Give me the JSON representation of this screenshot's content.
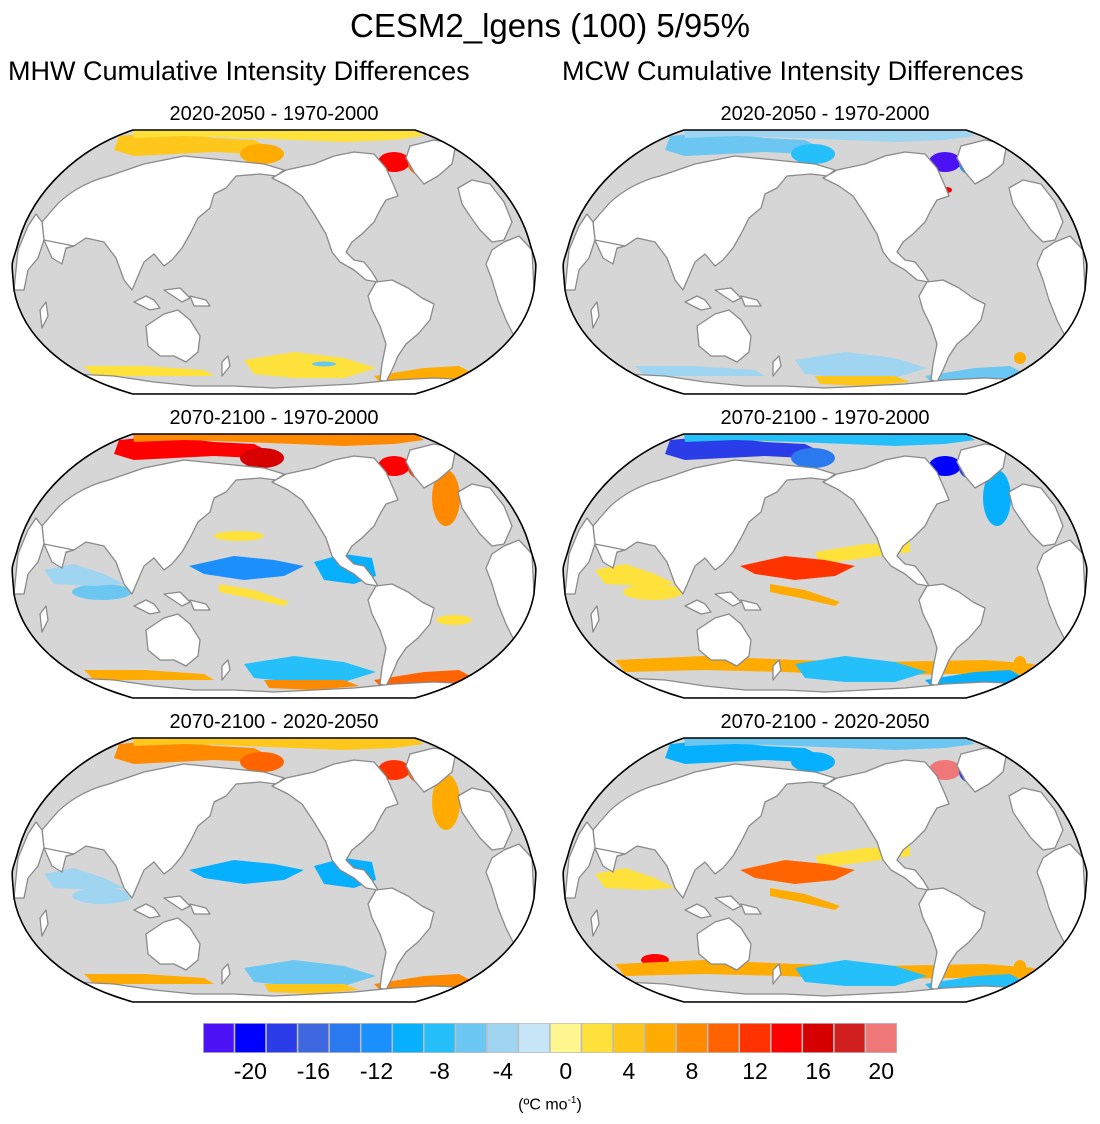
{
  "chart_data": {
    "type": "heatmap",
    "title": "CESM2_lgens (100) 5/95%",
    "projection": "Robinson, centered 180°",
    "columns": [
      "MHW Cumulative Intensity Differences",
      "MCW Cumulative Intensity Differences"
    ],
    "colorbar": {
      "units_prefix": "(ºC mo",
      "units_sup": "-1",
      "units_suffix": ")",
      "tick_labels": [
        "-20",
        "-16",
        "-12",
        "-8",
        "-4",
        "0",
        "4",
        "8",
        "12",
        "16",
        "20"
      ],
      "tick_values": [
        -20,
        -16,
        -12,
        -8,
        -4,
        0,
        4,
        8,
        12,
        16,
        20
      ],
      "levels": [
        -22,
        -20,
        -18,
        -16,
        -14,
        -12,
        -10,
        -8,
        -6,
        -4,
        -2,
        0,
        2,
        4,
        6,
        8,
        10,
        12,
        14,
        16,
        18,
        20,
        22
      ],
      "colors": [
        "#4a12f5",
        "#0000ff",
        "#2a3de8",
        "#3e66de",
        "#2a79ee",
        "#1b8ffc",
        "#07b0fc",
        "#25c0fa",
        "#6cc6f2",
        "#9fd5f0",
        "#c6e6f7",
        "#fff68f",
        "#ffe13b",
        "#ffc61c",
        "#ffab00",
        "#ff8a00",
        "#ff6400",
        "#ff3300",
        "#ff0000",
        "#d70000",
        "#d11f1f",
        "#f07777"
      ]
    },
    "land_color": "#ffffff",
    "nonsignificant_ocean_color": "#d6d6d6",
    "coastline_color": "#8a8a8a",
    "panels": [
      {
        "title": "2020-2050 - 1970-2000",
        "column": 0,
        "row": 0,
        "regions": [
          {
            "region": "arctic-siberian-shelf",
            "value": 4
          },
          {
            "region": "arctic-central",
            "value": 3
          },
          {
            "region": "east-siberian-sea",
            "value": 7
          },
          {
            "region": "hudson-bay",
            "value": 5
          },
          {
            "region": "labrador-sea",
            "value": 15
          },
          {
            "region": "irminger-sea",
            "value": 11
          },
          {
            "region": "southern-ocean-indian",
            "value": 3
          },
          {
            "region": "southern-ocean-pacific",
            "value": 3
          },
          {
            "region": "weddell-sea",
            "value": 6
          },
          {
            "region": "drake-passage",
            "value": -5
          }
        ]
      },
      {
        "title": "2020-2050 - 1970-2000",
        "column": 1,
        "row": 0,
        "regions": [
          {
            "region": "arctic-siberian-shelf",
            "value": -6
          },
          {
            "region": "arctic-central",
            "value": -3
          },
          {
            "region": "east-siberian-sea",
            "value": -8
          },
          {
            "region": "hudson-bay",
            "value": -4
          },
          {
            "region": "labrador-sea",
            "value": -21
          },
          {
            "region": "irminger-sea",
            "value": -12
          },
          {
            "region": "gulf-stream",
            "value": 14
          },
          {
            "region": "southern-ocean-indian",
            "value": -3
          },
          {
            "region": "southern-ocean-pacific",
            "value": -4
          },
          {
            "region": "ross-sea-band",
            "value": 5
          },
          {
            "region": "weddell-sea",
            "value": -6
          },
          {
            "region": "south-atlantic-eddy",
            "value": 6
          }
        ]
      },
      {
        "title": "2070-2100 - 1970-2000",
        "column": 0,
        "row": 1,
        "regions": [
          {
            "region": "arctic-siberian-shelf",
            "value": 15
          },
          {
            "region": "arctic-central",
            "value": 8
          },
          {
            "region": "east-siberian-sea",
            "value": 16
          },
          {
            "region": "hudson-bay",
            "value": 17
          },
          {
            "region": "labrador-sea",
            "value": 15
          },
          {
            "region": "irminger-sea",
            "value": 13
          },
          {
            "region": "north-atlantic-drift",
            "value": 9
          },
          {
            "region": "north-pacific-band",
            "value": 3
          },
          {
            "region": "equatorial-pacific-west",
            "value": -12
          },
          {
            "region": "equatorial-pacific-east",
            "value": -9
          },
          {
            "region": "indian-ocean-south",
            "value": -5
          },
          {
            "region": "indian-ocean-north",
            "value": -3
          },
          {
            "region": "south-pacific-band",
            "value": 3
          },
          {
            "region": "south-atlantic-band",
            "value": 3
          },
          {
            "region": "southern-ocean-pacific",
            "value": -8
          },
          {
            "region": "southern-ocean-indian",
            "value": 7
          },
          {
            "region": "weddell-sea",
            "value": 10
          },
          {
            "region": "ross-sea-band",
            "value": 9
          }
        ]
      },
      {
        "title": "2070-2100 - 1970-2000",
        "column": 1,
        "row": 1,
        "regions": [
          {
            "region": "arctic-siberian-shelf",
            "value": -17
          },
          {
            "region": "arctic-central",
            "value": -7
          },
          {
            "region": "east-siberian-sea",
            "value": -14
          },
          {
            "region": "hudson-bay",
            "value": -13
          },
          {
            "region": "labrador-sea",
            "value": -19
          },
          {
            "region": "irminger-sea",
            "value": -17
          },
          {
            "region": "north-atlantic-drift",
            "value": -9
          },
          {
            "region": "kuroshio",
            "value": 15
          },
          {
            "region": "equatorial-pacific-north",
            "value": 3
          },
          {
            "region": "equatorial-pacific-west",
            "value": 12
          },
          {
            "region": "indian-ocean-north",
            "value": 3
          },
          {
            "region": "indian-ocean-south",
            "value": 3
          },
          {
            "region": "south-pacific-band",
            "value": 7
          },
          {
            "region": "southern-ocean-front",
            "value": 7
          },
          {
            "region": "southern-ocean-pacific",
            "value": -8
          },
          {
            "region": "weddell-sea",
            "value": -9
          },
          {
            "region": "south-atlantic-eddy",
            "value": 6
          }
        ]
      },
      {
        "title": "2070-2100 - 2020-2050",
        "column": 0,
        "row": 2,
        "regions": [
          {
            "region": "arctic-siberian-shelf",
            "value": 8
          },
          {
            "region": "arctic-central",
            "value": 5
          },
          {
            "region": "east-siberian-sea",
            "value": 10
          },
          {
            "region": "hudson-bay",
            "value": 13
          },
          {
            "region": "labrador-sea",
            "value": 13
          },
          {
            "region": "irminger-sea",
            "value": 10
          },
          {
            "region": "north-atlantic-drift",
            "value": 7
          },
          {
            "region": "equatorial-pacific-west",
            "value": -9
          },
          {
            "region": "equatorial-pacific-east",
            "value": -10
          },
          {
            "region": "indian-ocean-south",
            "value": -3
          },
          {
            "region": "indian-ocean-north",
            "value": -3
          },
          {
            "region": "southern-ocean-pacific",
            "value": -6
          },
          {
            "region": "southern-ocean-indian",
            "value": 6
          },
          {
            "region": "weddell-sea",
            "value": 9
          },
          {
            "region": "ross-sea-band",
            "value": 5
          }
        ]
      },
      {
        "title": "2070-2100 - 2020-2050",
        "column": 1,
        "row": 2,
        "regions": [
          {
            "region": "arctic-siberian-shelf",
            "value": -9
          },
          {
            "region": "arctic-central",
            "value": -5
          },
          {
            "region": "east-siberian-sea",
            "value": -9
          },
          {
            "region": "hudson-bay",
            "value": -9
          },
          {
            "region": "labrador-sea",
            "value": 21
          },
          {
            "region": "irminger-sea",
            "value": -17
          },
          {
            "region": "equatorial-pacific-north",
            "value": 3
          },
          {
            "region": "equatorial-pacific-west",
            "value": 10
          },
          {
            "region": "indian-ocean-north",
            "value": 3
          },
          {
            "region": "south-pacific-band",
            "value": 7
          },
          {
            "region": "tasman-patch",
            "value": 15
          },
          {
            "region": "southern-ocean-front",
            "value": 6
          },
          {
            "region": "southern-ocean-pacific",
            "value": -7
          },
          {
            "region": "weddell-sea",
            "value": -8
          },
          {
            "region": "south-atlantic-eddy",
            "value": 6
          }
        ]
      }
    ]
  }
}
